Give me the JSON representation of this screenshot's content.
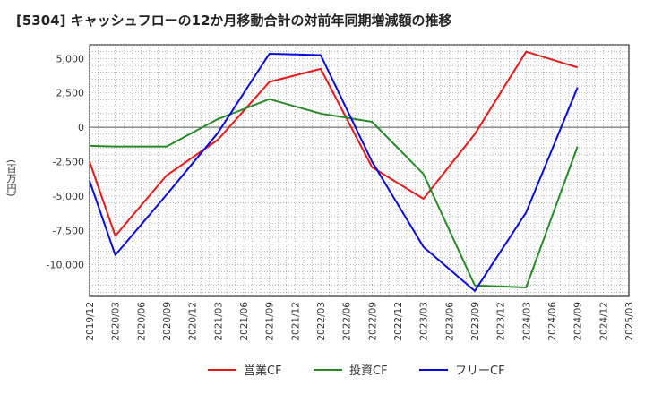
{
  "chart_data": {
    "type": "line",
    "title": "[5304]  キャッシュフローの12か月移動合計の対前年同期増減額の推移",
    "ylabel": "(百万円)",
    "xlabel": "",
    "ylim": [
      -12300,
      6000
    ],
    "yticks": [
      5000,
      2500,
      0,
      -2500,
      -5000,
      -7500,
      -10000
    ],
    "ytick_labels": [
      "5,000",
      "2,500",
      "0",
      "-2,500",
      "-5,000",
      "-7,500",
      "-10,000"
    ],
    "x_ticks": [
      "2019/12",
      "2020/03",
      "2020/06",
      "2020/09",
      "2020/12",
      "2021/03",
      "2021/06",
      "2021/09",
      "2021/12",
      "2022/03",
      "2022/06",
      "2022/09",
      "2022/12",
      "2023/03",
      "2023/06",
      "2023/09",
      "2023/12",
      "2024/03",
      "2024/06",
      "2024/09",
      "2024/12",
      "2025/03"
    ],
    "grid": true,
    "legend_position": "bottom",
    "series": [
      {
        "name": "営業CF",
        "color": "#e8191a",
        "points": [
          [
            "2019/12",
            -2500
          ],
          [
            "2020/03",
            -7900
          ],
          [
            "2020/09",
            -3500
          ],
          [
            "2021/03",
            -900
          ],
          [
            "2021/09",
            3300
          ],
          [
            "2022/03",
            4250
          ],
          [
            "2022/09",
            -2900
          ],
          [
            "2023/03",
            -5200
          ],
          [
            "2023/09",
            -500
          ],
          [
            "2024/03",
            5500
          ],
          [
            "2024/09",
            4350
          ]
        ]
      },
      {
        "name": "投資CF",
        "color": "#2a8a2a",
        "points": [
          [
            "2019/12",
            -1350
          ],
          [
            "2020/03",
            -1400
          ],
          [
            "2020/09",
            -1400
          ],
          [
            "2021/03",
            600
          ],
          [
            "2021/09",
            2050
          ],
          [
            "2022/03",
            1000
          ],
          [
            "2022/09",
            400
          ],
          [
            "2023/03",
            -3400
          ],
          [
            "2023/09",
            -11500
          ],
          [
            "2024/03",
            -11650
          ],
          [
            "2024/09",
            -1400
          ]
        ]
      },
      {
        "name": "フリーCF",
        "color": "#0a0adc",
        "points": [
          [
            "2019/12",
            -3900
          ],
          [
            "2020/03",
            -9300
          ],
          [
            "2020/09",
            -4900
          ],
          [
            "2021/03",
            -400
          ],
          [
            "2021/09",
            5350
          ],
          [
            "2022/03",
            5250
          ],
          [
            "2022/09",
            -2500
          ],
          [
            "2023/03",
            -8700
          ],
          [
            "2023/09",
            -11900
          ],
          [
            "2024/03",
            -6200
          ],
          [
            "2024/09",
            2900
          ]
        ]
      }
    ]
  }
}
